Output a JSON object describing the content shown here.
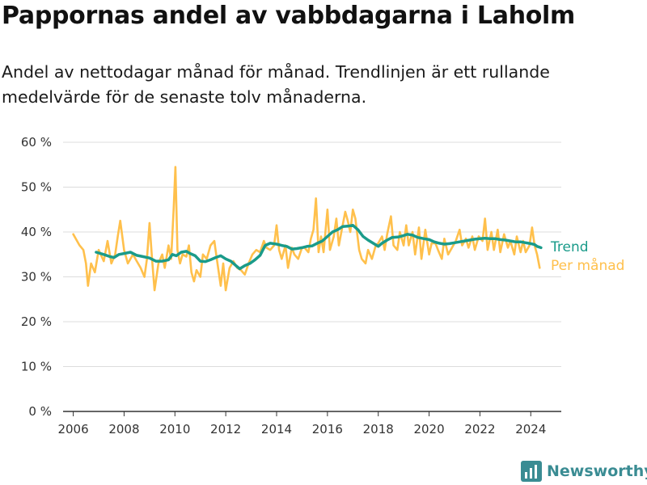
{
  "brand": {
    "name": "Newsworthy",
    "color": "#3a8c93"
  },
  "chart_data": {
    "type": "line",
    "title": "Pappornas andel av vabbdagarna i Laholm",
    "subtitle": "Andel av nettodagar månad för månad. Trendlinjen är ett rullande medelvärde för de senaste tolv månaderna.",
    "xlabel": "",
    "ylabel": "",
    "xlim": [
      2005.6,
      2025.2
    ],
    "ylim": [
      0,
      60
    ],
    "x_ticks": [
      2006,
      2008,
      2010,
      2012,
      2014,
      2016,
      2018,
      2020,
      2022,
      2024
    ],
    "y_ticks": [
      {
        "value": 0,
        "label": "0 %"
      },
      {
        "value": 10,
        "label": "10 %"
      },
      {
        "value": 20,
        "label": "20 %"
      },
      {
        "value": 30,
        "label": "30 %"
      },
      {
        "value": 40,
        "label": "40 %"
      },
      {
        "value": 50,
        "label": "50 %"
      },
      {
        "value": 60,
        "label": "60 %"
      }
    ],
    "grid": "horizontal",
    "legend_position": "right-end",
    "series": [
      {
        "name": "Per månad",
        "color": "#ffc04c",
        "data": [
          [
            2006.0,
            39.5
          ],
          [
            2006.25,
            37.0
          ],
          [
            2006.4,
            36.0
          ],
          [
            2006.5,
            33.0
          ],
          [
            2006.58,
            28.0
          ],
          [
            2006.7,
            33.0
          ],
          [
            2006.85,
            31.0
          ],
          [
            2007.0,
            36.0
          ],
          [
            2007.2,
            33.5
          ],
          [
            2007.35,
            38.0
          ],
          [
            2007.5,
            33.0
          ],
          [
            2007.65,
            35.0
          ],
          [
            2007.75,
            39.0
          ],
          [
            2007.85,
            42.5
          ],
          [
            2008.0,
            36.0
          ],
          [
            2008.15,
            33.0
          ],
          [
            2008.35,
            35.0
          ],
          [
            2008.5,
            33.5
          ],
          [
            2008.65,
            32.0
          ],
          [
            2008.8,
            30.0
          ],
          [
            2008.9,
            34.0
          ],
          [
            2009.0,
            42.0
          ],
          [
            2009.1,
            34.0
          ],
          [
            2009.2,
            27.0
          ],
          [
            2009.35,
            33.0
          ],
          [
            2009.5,
            35.0
          ],
          [
            2009.6,
            32.0
          ],
          [
            2009.75,
            37.0
          ],
          [
            2009.85,
            34.0
          ],
          [
            2009.95,
            45.0
          ],
          [
            2010.02,
            54.5
          ],
          [
            2010.1,
            36.0
          ],
          [
            2010.2,
            33.0
          ],
          [
            2010.3,
            35.0
          ],
          [
            2010.45,
            34.5
          ],
          [
            2010.55,
            37.0
          ],
          [
            2010.65,
            31.0
          ],
          [
            2010.75,
            29.0
          ],
          [
            2010.85,
            31.5
          ],
          [
            2011.0,
            30.0
          ],
          [
            2011.1,
            35.0
          ],
          [
            2011.25,
            34.0
          ],
          [
            2011.4,
            37.0
          ],
          [
            2011.55,
            38.0
          ],
          [
            2011.65,
            34.0
          ],
          [
            2011.8,
            28.0
          ],
          [
            2011.9,
            33.0
          ],
          [
            2012.0,
            27.0
          ],
          [
            2012.15,
            32.0
          ],
          [
            2012.3,
            33.5
          ],
          [
            2012.45,
            32.0
          ],
          [
            2012.6,
            31.5
          ],
          [
            2012.75,
            30.5
          ],
          [
            2012.9,
            33.0
          ],
          [
            2013.05,
            35.0
          ],
          [
            2013.2,
            36.0
          ],
          [
            2013.35,
            35.5
          ],
          [
            2013.5,
            38.0
          ],
          [
            2013.6,
            36.5
          ],
          [
            2013.75,
            36.0
          ],
          [
            2013.9,
            37.0
          ],
          [
            2014.0,
            41.5
          ],
          [
            2014.1,
            36.0
          ],
          [
            2014.2,
            34.0
          ],
          [
            2014.35,
            37.0
          ],
          [
            2014.45,
            32.0
          ],
          [
            2014.6,
            36.5
          ],
          [
            2014.7,
            35.0
          ],
          [
            2014.85,
            34.0
          ],
          [
            2015.0,
            36.5
          ],
          [
            2015.1,
            36.5
          ],
          [
            2015.25,
            35.5
          ],
          [
            2015.35,
            38.5
          ],
          [
            2015.45,
            40.5
          ],
          [
            2015.55,
            47.5
          ],
          [
            2015.65,
            35.5
          ],
          [
            2015.75,
            39.0
          ],
          [
            2015.85,
            35.5
          ],
          [
            2016.0,
            45.0
          ],
          [
            2016.1,
            36.0
          ],
          [
            2016.25,
            39.0
          ],
          [
            2016.35,
            43.0
          ],
          [
            2016.45,
            37.0
          ],
          [
            2016.55,
            40.0
          ],
          [
            2016.7,
            44.5
          ],
          [
            2016.8,
            42.5
          ],
          [
            2016.9,
            40.0
          ],
          [
            2017.0,
            45.0
          ],
          [
            2017.1,
            43.0
          ],
          [
            2017.25,
            36.0
          ],
          [
            2017.35,
            34.0
          ],
          [
            2017.5,
            33.0
          ],
          [
            2017.6,
            36.0
          ],
          [
            2017.75,
            34.0
          ],
          [
            2017.9,
            37.0
          ],
          [
            2018.0,
            37.5
          ],
          [
            2018.15,
            39.0
          ],
          [
            2018.25,
            36.0
          ],
          [
            2018.35,
            39.5
          ],
          [
            2018.5,
            43.5
          ],
          [
            2018.6,
            37.0
          ],
          [
            2018.75,
            36.0
          ],
          [
            2018.85,
            40.0
          ],
          [
            2019.0,
            37.0
          ],
          [
            2019.1,
            41.5
          ],
          [
            2019.2,
            37.0
          ],
          [
            2019.35,
            40.0
          ],
          [
            2019.45,
            35.0
          ],
          [
            2019.6,
            41.0
          ],
          [
            2019.7,
            34.0
          ],
          [
            2019.85,
            40.5
          ],
          [
            2020.0,
            35.0
          ],
          [
            2020.1,
            37.5
          ],
          [
            2020.25,
            37.5
          ],
          [
            2020.35,
            36.0
          ],
          [
            2020.5,
            34.0
          ],
          [
            2020.6,
            38.5
          ],
          [
            2020.75,
            35.0
          ],
          [
            2020.9,
            36.5
          ],
          [
            2021.05,
            38.0
          ],
          [
            2021.2,
            40.5
          ],
          [
            2021.3,
            37.0
          ],
          [
            2021.45,
            38.5
          ],
          [
            2021.55,
            36.5
          ],
          [
            2021.7,
            39.0
          ],
          [
            2021.8,
            36.0
          ],
          [
            2021.95,
            39.0
          ],
          [
            2022.1,
            38.0
          ],
          [
            2022.2,
            43.0
          ],
          [
            2022.3,
            36.0
          ],
          [
            2022.45,
            40.0
          ],
          [
            2022.55,
            36.0
          ],
          [
            2022.7,
            40.5
          ],
          [
            2022.8,
            35.5
          ],
          [
            2022.95,
            39.5
          ],
          [
            2023.1,
            36.5
          ],
          [
            2023.2,
            38.0
          ],
          [
            2023.35,
            35.0
          ],
          [
            2023.45,
            39.0
          ],
          [
            2023.6,
            35.5
          ],
          [
            2023.7,
            38.0
          ],
          [
            2023.8,
            35.5
          ],
          [
            2023.95,
            37.0
          ],
          [
            2024.05,
            41.0
          ],
          [
            2024.15,
            37.0
          ],
          [
            2024.25,
            35.0
          ],
          [
            2024.35,
            32.0
          ]
        ]
      },
      {
        "name": "Trend",
        "color": "#1a9b8a",
        "data": [
          [
            2006.9,
            35.5
          ],
          [
            2007.2,
            35.0
          ],
          [
            2007.45,
            34.5
          ],
          [
            2007.6,
            34.3
          ],
          [
            2007.8,
            35.0
          ],
          [
            2008.0,
            35.2
          ],
          [
            2008.25,
            35.5
          ],
          [
            2008.5,
            34.8
          ],
          [
            2008.75,
            34.5
          ],
          [
            2009.0,
            34.2
          ],
          [
            2009.25,
            33.5
          ],
          [
            2009.5,
            33.5
          ],
          [
            2009.75,
            33.8
          ],
          [
            2009.9,
            35.0
          ],
          [
            2010.05,
            34.7
          ],
          [
            2010.25,
            35.5
          ],
          [
            2010.45,
            35.7
          ],
          [
            2010.6,
            35.2
          ],
          [
            2010.8,
            34.7
          ],
          [
            2011.0,
            33.5
          ],
          [
            2011.2,
            33.4
          ],
          [
            2011.4,
            33.8
          ],
          [
            2011.6,
            34.3
          ],
          [
            2011.8,
            34.7
          ],
          [
            2012.0,
            34.0
          ],
          [
            2012.2,
            33.5
          ],
          [
            2012.4,
            32.5
          ],
          [
            2012.55,
            31.8
          ],
          [
            2012.75,
            32.5
          ],
          [
            2012.95,
            33.0
          ],
          [
            2013.15,
            33.8
          ],
          [
            2013.35,
            34.8
          ],
          [
            2013.55,
            37.0
          ],
          [
            2013.75,
            37.5
          ],
          [
            2014.0,
            37.3
          ],
          [
            2014.2,
            37.0
          ],
          [
            2014.4,
            36.8
          ],
          [
            2014.6,
            36.2
          ],
          [
            2014.8,
            36.3
          ],
          [
            2015.0,
            36.5
          ],
          [
            2015.2,
            36.8
          ],
          [
            2015.4,
            36.9
          ],
          [
            2015.6,
            37.5
          ],
          [
            2015.8,
            38.0
          ],
          [
            2016.0,
            39.0
          ],
          [
            2016.2,
            40.0
          ],
          [
            2016.4,
            40.5
          ],
          [
            2016.6,
            41.2
          ],
          [
            2016.8,
            41.3
          ],
          [
            2017.0,
            41.5
          ],
          [
            2017.2,
            40.5
          ],
          [
            2017.4,
            39.0
          ],
          [
            2017.6,
            38.2
          ],
          [
            2017.8,
            37.5
          ],
          [
            2018.0,
            36.8
          ],
          [
            2018.15,
            37.5
          ],
          [
            2018.35,
            38.2
          ],
          [
            2018.55,
            38.8
          ],
          [
            2018.8,
            38.9
          ],
          [
            2019.0,
            39.2
          ],
          [
            2019.15,
            39.5
          ],
          [
            2019.35,
            39.3
          ],
          [
            2019.55,
            38.8
          ],
          [
            2019.8,
            38.5
          ],
          [
            2020.0,
            38.3
          ],
          [
            2020.2,
            37.8
          ],
          [
            2020.4,
            37.5
          ],
          [
            2020.6,
            37.3
          ],
          [
            2020.8,
            37.4
          ],
          [
            2021.0,
            37.6
          ],
          [
            2021.2,
            37.8
          ],
          [
            2021.4,
            38.0
          ],
          [
            2021.6,
            38.2
          ],
          [
            2021.8,
            38.4
          ],
          [
            2022.0,
            38.5
          ],
          [
            2022.2,
            38.6
          ],
          [
            2022.4,
            38.5
          ],
          [
            2022.6,
            38.5
          ],
          [
            2022.8,
            38.3
          ],
          [
            2023.0,
            38.2
          ],
          [
            2023.2,
            38.0
          ],
          [
            2023.4,
            37.8
          ],
          [
            2023.6,
            37.8
          ],
          [
            2023.8,
            37.6
          ],
          [
            2024.0,
            37.4
          ],
          [
            2024.15,
            37.2
          ],
          [
            2024.25,
            36.8
          ],
          [
            2024.4,
            36.5
          ]
        ]
      }
    ]
  }
}
